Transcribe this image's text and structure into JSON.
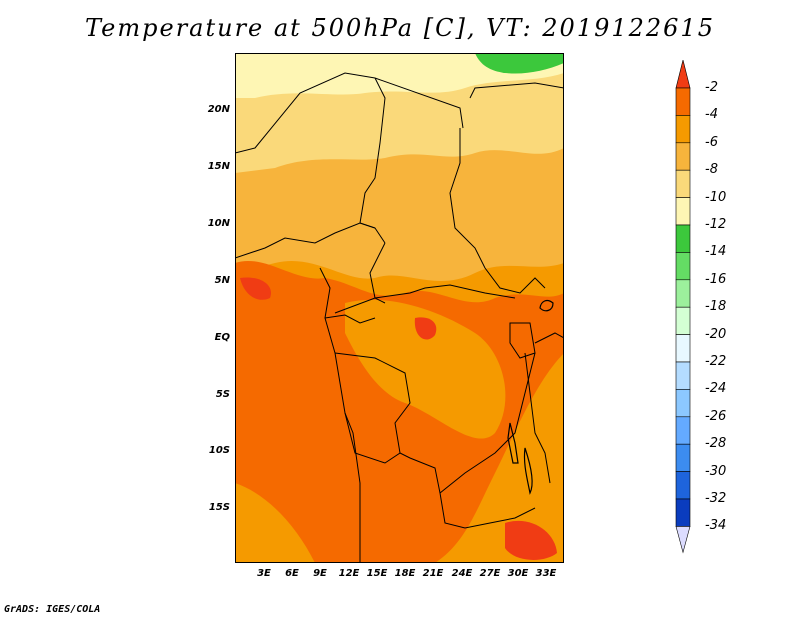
{
  "title": "Temperature at 500hPa [C], VT: 2019122615",
  "credit": "GrADS: IGES/COLA",
  "lat_labels": [
    "20N",
    "15N",
    "10N",
    "5N",
    "EQ",
    "5S",
    "10S",
    "15S"
  ],
  "lon_labels": [
    "3E",
    "6E",
    "9E",
    "12E",
    "15E",
    "18E",
    "21E",
    "24E",
    "27E",
    "30E",
    "33E"
  ],
  "colorbar": {
    "labels": [
      "-2",
      "-4",
      "-6",
      "-8",
      "-10",
      "-12",
      "-14",
      "-16",
      "-18",
      "-20",
      "-22",
      "-24",
      "-26",
      "-28",
      "-30",
      "-32",
      "-34"
    ],
    "colors": [
      "#f03c14",
      "#f56a00",
      "#f59a00",
      "#f7b43c",
      "#fad97a",
      "#fef6b4",
      "#3cc83c",
      "#64dc64",
      "#9cf09c",
      "#d4ffd4",
      "#e8f8ff",
      "#b4dcff",
      "#8cc8ff",
      "#64aaff",
      "#3c8cf0",
      "#1e64dc",
      "#0a3cbe",
      "#0a1478"
    ],
    "over_color": "#f03c14",
    "under_color": "#dcdcff"
  },
  "field_colors": {
    "c_2_4": "#f56a00",
    "c_4_6": "#f59a00",
    "c_6_8": "#f7b43c",
    "c_8_10": "#fad97a",
    "c_10_12": "#fef6b4",
    "c_12_14": "#3cc83c",
    "c_hot": "#f03c14"
  }
}
